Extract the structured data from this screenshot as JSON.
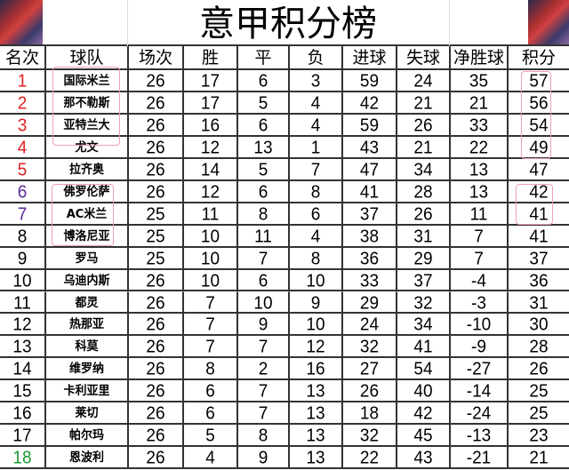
{
  "title": "意甲积分榜",
  "corner_images": [
    "player-photo-left",
    "player-photo-right"
  ],
  "headers": [
    "名次",
    "球队",
    "场次",
    "胜",
    "平",
    "负",
    "进球",
    "失球",
    "净胜球",
    "积分"
  ],
  "rank_colors": {
    "top": "#e02020",
    "europe": "#5a2a9a",
    "relegation_playoff": "#1a9a30",
    "default": "#000000"
  },
  "rows": [
    [
      "1",
      "国际米兰",
      "26",
      "17",
      "6",
      "3",
      "59",
      "24",
      "35",
      "57"
    ],
    [
      "2",
      "那不勒斯",
      "26",
      "17",
      "5",
      "4",
      "42",
      "21",
      "21",
      "56"
    ],
    [
      "3",
      "亚特兰大",
      "26",
      "16",
      "6",
      "4",
      "59",
      "26",
      "33",
      "54"
    ],
    [
      "4",
      "尤文",
      "26",
      "12",
      "13",
      "1",
      "43",
      "21",
      "22",
      "49"
    ],
    [
      "5",
      "拉齐奥",
      "26",
      "14",
      "5",
      "7",
      "47",
      "34",
      "13",
      "47"
    ],
    [
      "6",
      "佛罗伦萨",
      "26",
      "12",
      "6",
      "8",
      "41",
      "28",
      "13",
      "42"
    ],
    [
      "7",
      "AC米兰",
      "25",
      "11",
      "8",
      "6",
      "37",
      "26",
      "11",
      "41"
    ],
    [
      "8",
      "博洛尼亚",
      "25",
      "10",
      "11",
      "4",
      "38",
      "31",
      "7",
      "41"
    ],
    [
      "9",
      "罗马",
      "25",
      "10",
      "7",
      "8",
      "36",
      "29",
      "7",
      "37"
    ],
    [
      "10",
      "乌迪内斯",
      "26",
      "10",
      "6",
      "10",
      "33",
      "37",
      "-4",
      "36"
    ],
    [
      "11",
      "都灵",
      "26",
      "7",
      "10",
      "9",
      "29",
      "32",
      "-3",
      "31"
    ],
    [
      "12",
      "热那亚",
      "26",
      "7",
      "9",
      "10",
      "24",
      "34",
      "-10",
      "30"
    ],
    [
      "13",
      "科莫",
      "26",
      "7",
      "7",
      "12",
      "32",
      "41",
      "-9",
      "28"
    ],
    [
      "14",
      "维罗纳",
      "26",
      "8",
      "2",
      "16",
      "27",
      "54",
      "-27",
      "26"
    ],
    [
      "15",
      "卡利亚里",
      "26",
      "6",
      "7",
      "13",
      "26",
      "40",
      "-14",
      "25"
    ],
    [
      "16",
      "莱切",
      "26",
      "6",
      "7",
      "13",
      "18",
      "42",
      "-24",
      "25"
    ],
    [
      "17",
      "帕尔玛",
      "26",
      "5",
      "8",
      "13",
      "32",
      "45",
      "-13",
      "23"
    ],
    [
      "18",
      "恩波利",
      "26",
      "4",
      "9",
      "13",
      "22",
      "43",
      "-21",
      "21"
    ]
  ]
}
